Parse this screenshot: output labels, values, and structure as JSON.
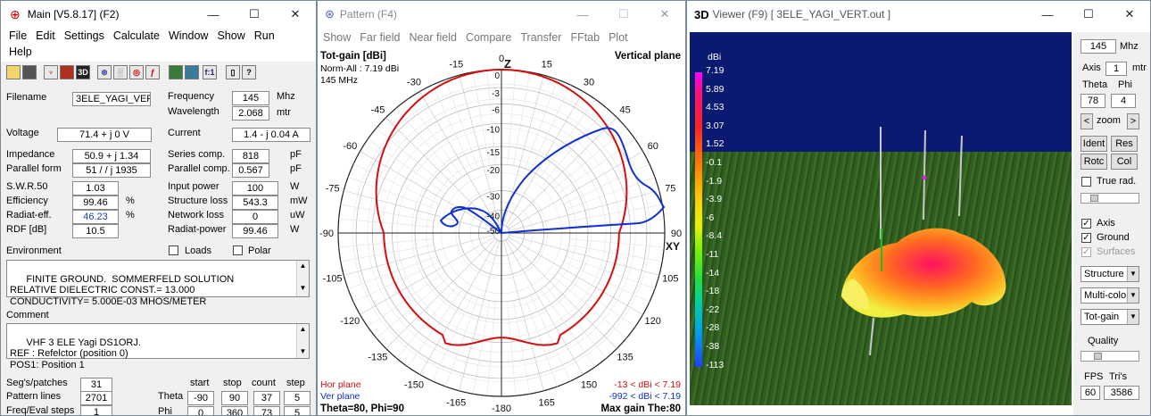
{
  "main": {
    "title": "Main [V5.8.17]   (F2)",
    "menu": [
      "File",
      "Edit",
      "Settings",
      "Calculate",
      "Window",
      "Show",
      "Run",
      "Help"
    ],
    "toolbar": [
      "folder",
      "save",
      "antenna",
      "3d-box",
      "3D",
      "globe",
      "grid",
      "circle",
      "f",
      "table",
      "graph",
      "f:1",
      "book",
      "help"
    ],
    "filename": {
      "label": "Filename",
      "value": "3ELE_YAGI_VER"
    },
    "frequency": {
      "label": "Frequency",
      "value": "145",
      "unit": "Mhz"
    },
    "wavelength": {
      "label": "Wavelength",
      "value": "2.068",
      "unit": "mtr"
    },
    "voltage": {
      "label": "Voltage",
      "value": "71.4 + j 0 V"
    },
    "current": {
      "label": "Current",
      "value": "1.4 - j 0.04 A"
    },
    "impedance": {
      "label": "Impedance",
      "value": "50.9 + j 1.34"
    },
    "series_comp": {
      "label": "Series comp.",
      "value": "818",
      "unit": "pF"
    },
    "parallel_form": {
      "label": "Parallel form",
      "value": "51 / / j 1935"
    },
    "parallel_comp": {
      "label": "Parallel comp.",
      "value": "0.567",
      "unit": "pF"
    },
    "swr": {
      "label": "S.W.R.50",
      "value": "1.03"
    },
    "input_power": {
      "label": "Input power",
      "value": "100",
      "unit": "W"
    },
    "efficiency": {
      "label": "Efficiency",
      "value": "99.46",
      "unit": "%"
    },
    "structure_loss": {
      "label": "Structure loss",
      "value": "543.3",
      "unit": "mW"
    },
    "radiat_eff": {
      "label": "Radiat-eff.",
      "value": "46.23",
      "unit": "%"
    },
    "network_loss": {
      "label": "Network loss",
      "value": "0",
      "unit": "uW"
    },
    "rdf": {
      "label": "RDF [dB]",
      "value": "10.5"
    },
    "radiat_power": {
      "label": "Radiat-power",
      "value": "99.46",
      "unit": "W"
    },
    "environment": {
      "label": "Environment",
      "loads": "Loads",
      "polar": "Polar",
      "text": "FINITE GROUND.  SOMMERFELD SOLUTION\nRELATIVE DIELECTRIC CONST.= 13.000\nCONDUCTIVITY= 5.000E-03 MHOS/METER"
    },
    "comment": {
      "label": "Comment",
      "text": "VHF 3 ELE Yagi DS1ORJ.\nREF : Refelctor (position 0)\nPOS1: Position 1"
    },
    "segs": {
      "label": "Seg's/patches",
      "value": "31"
    },
    "pattern_lines": {
      "label": "Pattern lines",
      "value": "2701"
    },
    "freq_eval": {
      "label": "Freq/Eval steps",
      "value": "1"
    },
    "grid_headers": [
      "start",
      "stop",
      "count",
      "step"
    ],
    "theta": {
      "label": "Theta",
      "values": [
        "-90",
        "90",
        "37",
        "5"
      ]
    },
    "phi": {
      "label": "Phi",
      "values": [
        "0",
        "360",
        "73",
        "5"
      ]
    }
  },
  "pattern": {
    "title": "Pattern   (F4)",
    "menu": [
      "Show",
      "Far field",
      "Near field",
      "Compare",
      "Transfer",
      "FFtab",
      "Plot"
    ],
    "header_left": "Tot-gain [dBi]",
    "norm": "Norm-All : 7.19 dBi",
    "freq": "145 MHz",
    "plane": "Vertical plane",
    "z_label": "Z",
    "xy_label": "XY",
    "angle_labels": [
      "0",
      "15",
      "30",
      "45",
      "60",
      "75",
      "90",
      "105",
      "120",
      "135",
      "150",
      "165",
      "-180",
      "-165",
      "-150",
      "-135",
      "-120",
      "-105",
      "-90",
      "-75",
      "-60",
      "-45",
      "-30",
      "-15"
    ],
    "ring_labels": [
      "0",
      "-3",
      "-6",
      "-10",
      "-15",
      "-20",
      "-30",
      "-40",
      "-50"
    ],
    "hor_plane": "Hor plane",
    "ver_plane": "Ver plane",
    "hor_range": "-13 < dBi < 7.19",
    "ver_range": "-992 < dBi < 7.19",
    "footer_left": "Theta=80, Phi=90",
    "footer_right": "Max gain The:80",
    "hor_color": "#d01010",
    "ver_color": "#1030d0"
  },
  "viewer": {
    "title": "Viewer (F9)    [  3ELE_YAGI_VERT.out ]",
    "title_3d": "3D",
    "scale_unit": "dBi",
    "scale": [
      "7.19",
      "5.89",
      "4.53",
      "3.07",
      "1.52",
      "-0.1",
      "-1.9",
      "-3.9",
      "-6",
      "-8.4",
      "-11",
      "-14",
      "-18",
      "-22",
      "-28",
      "-38",
      "-113"
    ],
    "freq": "145",
    "freq_unit": "Mhz",
    "axis_label": "Axis",
    "axis_value": "1",
    "axis_unit": "mtr",
    "theta_label": "Theta",
    "phi_label": "Phi",
    "theta_value": "78",
    "phi_value": "4",
    "zoom": "zoom",
    "zoom_left": "<",
    "zoom_right": ">",
    "buttons": [
      "Ident",
      "Res",
      "Rotc",
      "Col"
    ],
    "true_rad": "True rad.",
    "axis_chk": "Axis",
    "ground_chk": "Ground",
    "surfaces_chk": "Surfaces",
    "dropdowns": [
      "Structure",
      "Multi-colo",
      "Tot-gain"
    ],
    "quality": "Quality",
    "fps_label": "FPS",
    "fps": "60",
    "tris_label": "Tri's",
    "tris": "3586",
    "sky_color": "#0a1a70",
    "ground_color": "#2e5a1e"
  }
}
